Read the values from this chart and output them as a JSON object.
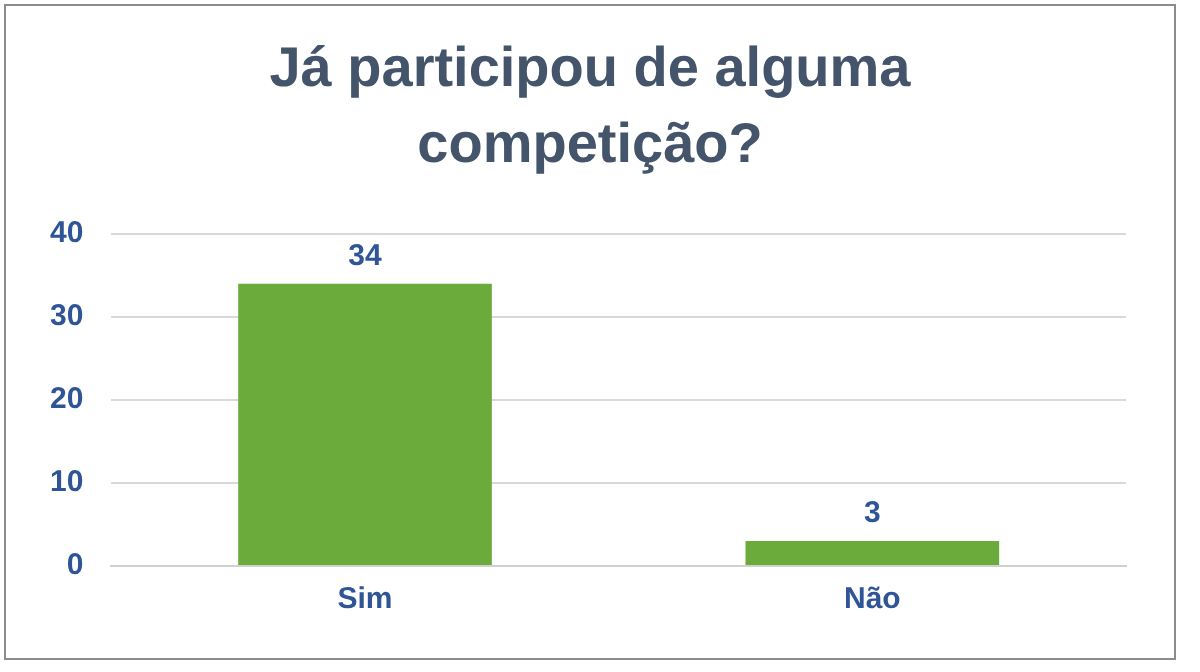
{
  "chart_data": {
    "type": "bar",
    "title": "Já participou de alguma competição?",
    "categories": [
      "Sim",
      "Não"
    ],
    "values": [
      34,
      3
    ],
    "color": "#6aab3b",
    "ylim": [
      0,
      40
    ],
    "yticks": [
      0,
      10,
      20,
      30,
      40
    ],
    "grid": "y",
    "data_labels": true,
    "legend": false
  }
}
